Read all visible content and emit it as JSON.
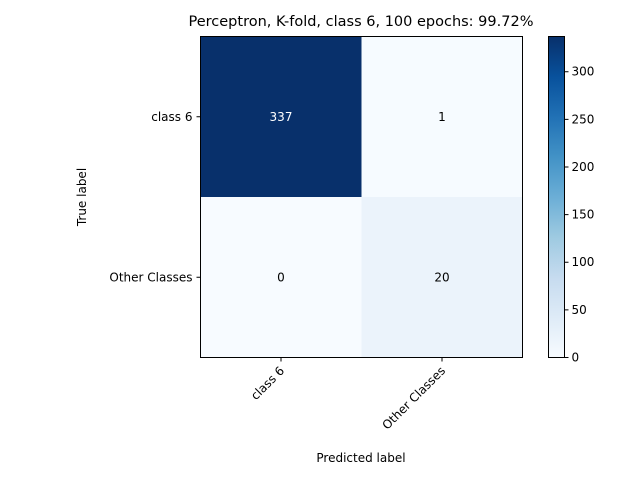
{
  "chart_data": {
    "type": "heatmap",
    "title": "Perceptron, K-fold, class 6, 100 epochs: 99.72%",
    "xlabel": "Predicted label",
    "ylabel": "True label",
    "x_categories": [
      "class 6",
      "Other Classes"
    ],
    "y_categories": [
      "class 6",
      "Other Classes"
    ],
    "matrix": [
      [
        337,
        1
      ],
      [
        0,
        20
      ]
    ],
    "colormap": "Blues",
    "colorbar": {
      "vmin": 0,
      "vmax": 337,
      "ticks": [
        0,
        50,
        100,
        150,
        200,
        250,
        300
      ]
    },
    "grid": false,
    "colors": {
      "low": "#f7fbff",
      "high": "#08306b",
      "text_dark_cell": "#ffffff",
      "text_light_cell": "#000000"
    }
  }
}
